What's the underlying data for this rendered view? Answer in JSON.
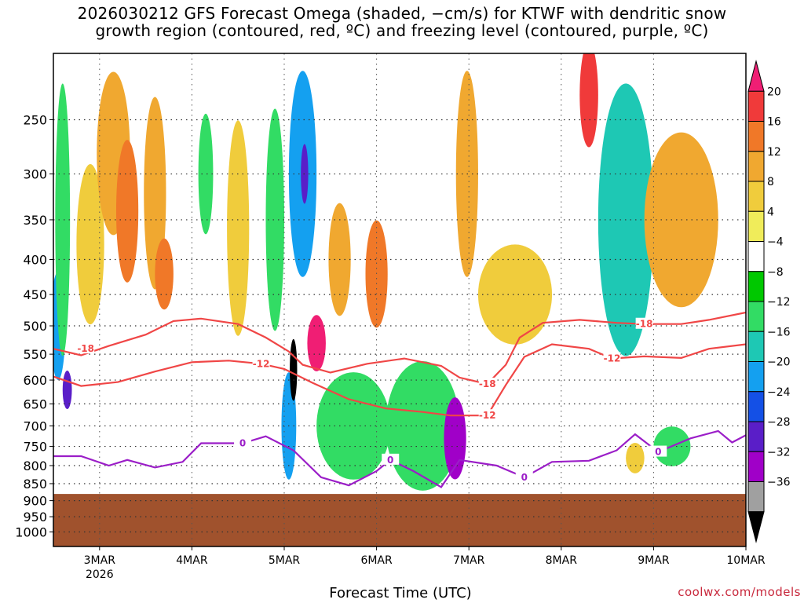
{
  "title_line1": "2026030212 GFS Forecast Omega (shaded, −cm/s) for KTWF with dendritic snow",
  "title_line2": "growth region (contoured, red, ºC) and freezing level (contoured, purple, ºC)",
  "credit": "coolwx.com/models",
  "chart_data": {
    "type": "heatmap",
    "title": "2026030212 GFS Forecast Omega (shaded, −cm/s) for KTWF with dendritic snow growth region (contoured, red, ºC) and freezing level (contoured, purple, ºC)",
    "xlabel": "Forecast Time (UTC)",
    "ylabel": "",
    "x_ticks": [
      "3MAR",
      "4MAR",
      "5MAR",
      "6MAR",
      "7MAR",
      "8MAR",
      "9MAR",
      "10MAR"
    ],
    "x_year_label": "2026",
    "xlim_days": [
      2.5,
      10.0
    ],
    "y_ticks": [
      250,
      300,
      350,
      400,
      450,
      500,
      550,
      600,
      650,
      700,
      750,
      800,
      850,
      900,
      950,
      1000
    ],
    "ylim": [
      1050,
      200
    ],
    "y_scale": "log",
    "ground_level_hpa": 880,
    "grid": true,
    "colorbar": {
      "labels": [
        "20",
        "16",
        "12",
        "8",
        "4",
        "−4",
        "−8",
        "−12",
        "−16",
        "−20",
        "−24",
        "−28",
        "−32",
        "−36"
      ],
      "colors": [
        "#f01e74",
        "#f03a3a",
        "#f07828",
        "#f0a830",
        "#f0cc3c",
        "#f0ec5a",
        "#ffffff",
        "#00c800",
        "#32dc64",
        "#1ec8b4",
        "#14a0f0",
        "#1450e6",
        "#5a1ec8",
        "#a000c8",
        "#a0a0a0",
        "#000000"
      ]
    },
    "omega_cells": [
      {
        "x": 2.55,
        "p": 500,
        "dx": 0.08,
        "dp": 180,
        "v": -16
      },
      {
        "x": 2.6,
        "p": 350,
        "dx": 0.08,
        "dp": 300,
        "v": -8
      },
      {
        "x": 2.65,
        "p": 620,
        "dx": 0.05,
        "dp": 80,
        "v": -24
      },
      {
        "x": 2.9,
        "p": 380,
        "dx": 0.15,
        "dp": 200,
        "v": 4
      },
      {
        "x": 3.15,
        "p": 280,
        "dx": 0.18,
        "dp": 150,
        "v": 8
      },
      {
        "x": 3.3,
        "p": 340,
        "dx": 0.12,
        "dp": 160,
        "v": 12
      },
      {
        "x": 3.6,
        "p": 320,
        "dx": 0.12,
        "dp": 200,
        "v": 8
      },
      {
        "x": 3.7,
        "p": 420,
        "dx": 0.1,
        "dp": 100,
        "v": 12
      },
      {
        "x": 4.15,
        "p": 300,
        "dx": 0.08,
        "dp": 120,
        "v": -8
      },
      {
        "x": 4.5,
        "p": 360,
        "dx": 0.12,
        "dp": 250,
        "v": 4
      },
      {
        "x": 4.9,
        "p": 350,
        "dx": 0.1,
        "dp": 250,
        "v": -8
      },
      {
        "x": 5.05,
        "p": 700,
        "dx": 0.08,
        "dp": 250,
        "v": -16
      },
      {
        "x": 5.1,
        "p": 580,
        "dx": 0.04,
        "dp": 120,
        "v": -36
      },
      {
        "x": 5.2,
        "p": 300,
        "dx": 0.15,
        "dp": 200,
        "v": -16
      },
      {
        "x": 5.22,
        "p": 300,
        "dx": 0.04,
        "dp": 60,
        "v": -24
      },
      {
        "x": 5.35,
        "p": 530,
        "dx": 0.1,
        "dp": 100,
        "v": 20
      },
      {
        "x": 5.6,
        "p": 400,
        "dx": 0.12,
        "dp": 150,
        "v": 8
      },
      {
        "x": 5.75,
        "p": 700,
        "dx": 0.4,
        "dp": 250,
        "v": -8
      },
      {
        "x": 6.0,
        "p": 420,
        "dx": 0.12,
        "dp": 150,
        "v": 12
      },
      {
        "x": 6.5,
        "p": 700,
        "dx": 0.4,
        "dp": 300,
        "v": -8
      },
      {
        "x": 6.85,
        "p": 730,
        "dx": 0.12,
        "dp": 200,
        "v": -28
      },
      {
        "x": 6.98,
        "p": 300,
        "dx": 0.12,
        "dp": 200,
        "v": 8
      },
      {
        "x": 7.5,
        "p": 450,
        "dx": 0.4,
        "dp": 150,
        "v": 4
      },
      {
        "x": 8.3,
        "p": 230,
        "dx": 0.1,
        "dp": 80,
        "v": 16
      },
      {
        "x": 8.7,
        "p": 350,
        "dx": 0.3,
        "dp": 300,
        "v": -12
      },
      {
        "x": 9.3,
        "p": 350,
        "dx": 0.4,
        "dp": 200,
        "v": 8
      },
      {
        "x": 9.2,
        "p": 750,
        "dx": 0.2,
        "dp": 100,
        "v": -8
      },
      {
        "x": 8.8,
        "p": 780,
        "dx": 0.1,
        "dp": 80,
        "v": 4
      }
    ],
    "series": [
      {
        "name": "-18",
        "contour_labels": [
          {
            "x": 2.85,
            "p": 540
          },
          {
            "x": 7.2,
            "p": 608
          },
          {
            "x": 8.9,
            "p": 497
          }
        ],
        "points": [
          [
            2.5,
            540
          ],
          [
            2.8,
            552
          ],
          [
            3.1,
            535
          ],
          [
            3.5,
            515
          ],
          [
            3.8,
            492
          ],
          [
            4.1,
            488
          ],
          [
            4.5,
            497
          ],
          [
            4.8,
            520
          ],
          [
            5.05,
            545
          ],
          [
            5.2,
            570
          ],
          [
            5.5,
            585
          ],
          [
            5.9,
            568
          ],
          [
            6.3,
            558
          ],
          [
            6.7,
            572
          ],
          [
            6.9,
            595
          ],
          [
            7.2,
            608
          ],
          [
            7.4,
            570
          ],
          [
            7.55,
            520
          ],
          [
            7.8,
            495
          ],
          [
            8.2,
            490
          ],
          [
            8.6,
            495
          ],
          [
            8.9,
            497
          ],
          [
            9.3,
            497
          ],
          [
            9.6,
            490
          ],
          [
            10.0,
            478
          ]
        ]
      },
      {
        "name": "-12",
        "contour_labels": [
          {
            "x": 4.75,
            "p": 568
          },
          {
            "x": 7.2,
            "p": 676
          },
          {
            "x": 8.55,
            "p": 558
          }
        ],
        "points": [
          [
            2.5,
            593
          ],
          [
            2.8,
            612
          ],
          [
            3.2,
            604
          ],
          [
            3.6,
            583
          ],
          [
            4.0,
            565
          ],
          [
            4.4,
            562
          ],
          [
            4.75,
            568
          ],
          [
            5.0,
            578
          ],
          [
            5.3,
            605
          ],
          [
            5.7,
            640
          ],
          [
            6.1,
            660
          ],
          [
            6.5,
            668
          ],
          [
            6.8,
            676
          ],
          [
            7.2,
            676
          ],
          [
            7.4,
            610
          ],
          [
            7.6,
            555
          ],
          [
            7.9,
            532
          ],
          [
            8.3,
            540
          ],
          [
            8.55,
            558
          ],
          [
            8.9,
            554
          ],
          [
            9.3,
            557
          ],
          [
            9.6,
            540
          ],
          [
            10.0,
            532
          ]
        ]
      },
      {
        "name": "0",
        "contour_labels": [
          {
            "x": 4.55,
            "p": 742
          },
          {
            "x": 6.15,
            "p": 785
          },
          {
            "x": 7.6,
            "p": 832
          },
          {
            "x": 9.05,
            "p": 764
          }
        ],
        "points": [
          [
            2.5,
            775
          ],
          [
            2.8,
            775
          ],
          [
            3.1,
            800
          ],
          [
            3.3,
            785
          ],
          [
            3.6,
            805
          ],
          [
            3.9,
            790
          ],
          [
            4.1,
            742
          ],
          [
            4.55,
            742
          ],
          [
            4.8,
            725
          ],
          [
            5.1,
            760
          ],
          [
            5.4,
            832
          ],
          [
            5.7,
            855
          ],
          [
            6.0,
            815
          ],
          [
            6.15,
            785
          ],
          [
            6.4,
            815
          ],
          [
            6.7,
            860
          ],
          [
            6.9,
            785
          ],
          [
            7.3,
            800
          ],
          [
            7.6,
            832
          ],
          [
            7.9,
            790
          ],
          [
            8.3,
            787
          ],
          [
            8.6,
            760
          ],
          [
            8.8,
            720
          ],
          [
            9.05,
            764
          ],
          [
            9.4,
            730
          ],
          [
            9.7,
            712
          ],
          [
            9.85,
            740
          ],
          [
            10.0,
            722
          ]
        ]
      }
    ]
  }
}
